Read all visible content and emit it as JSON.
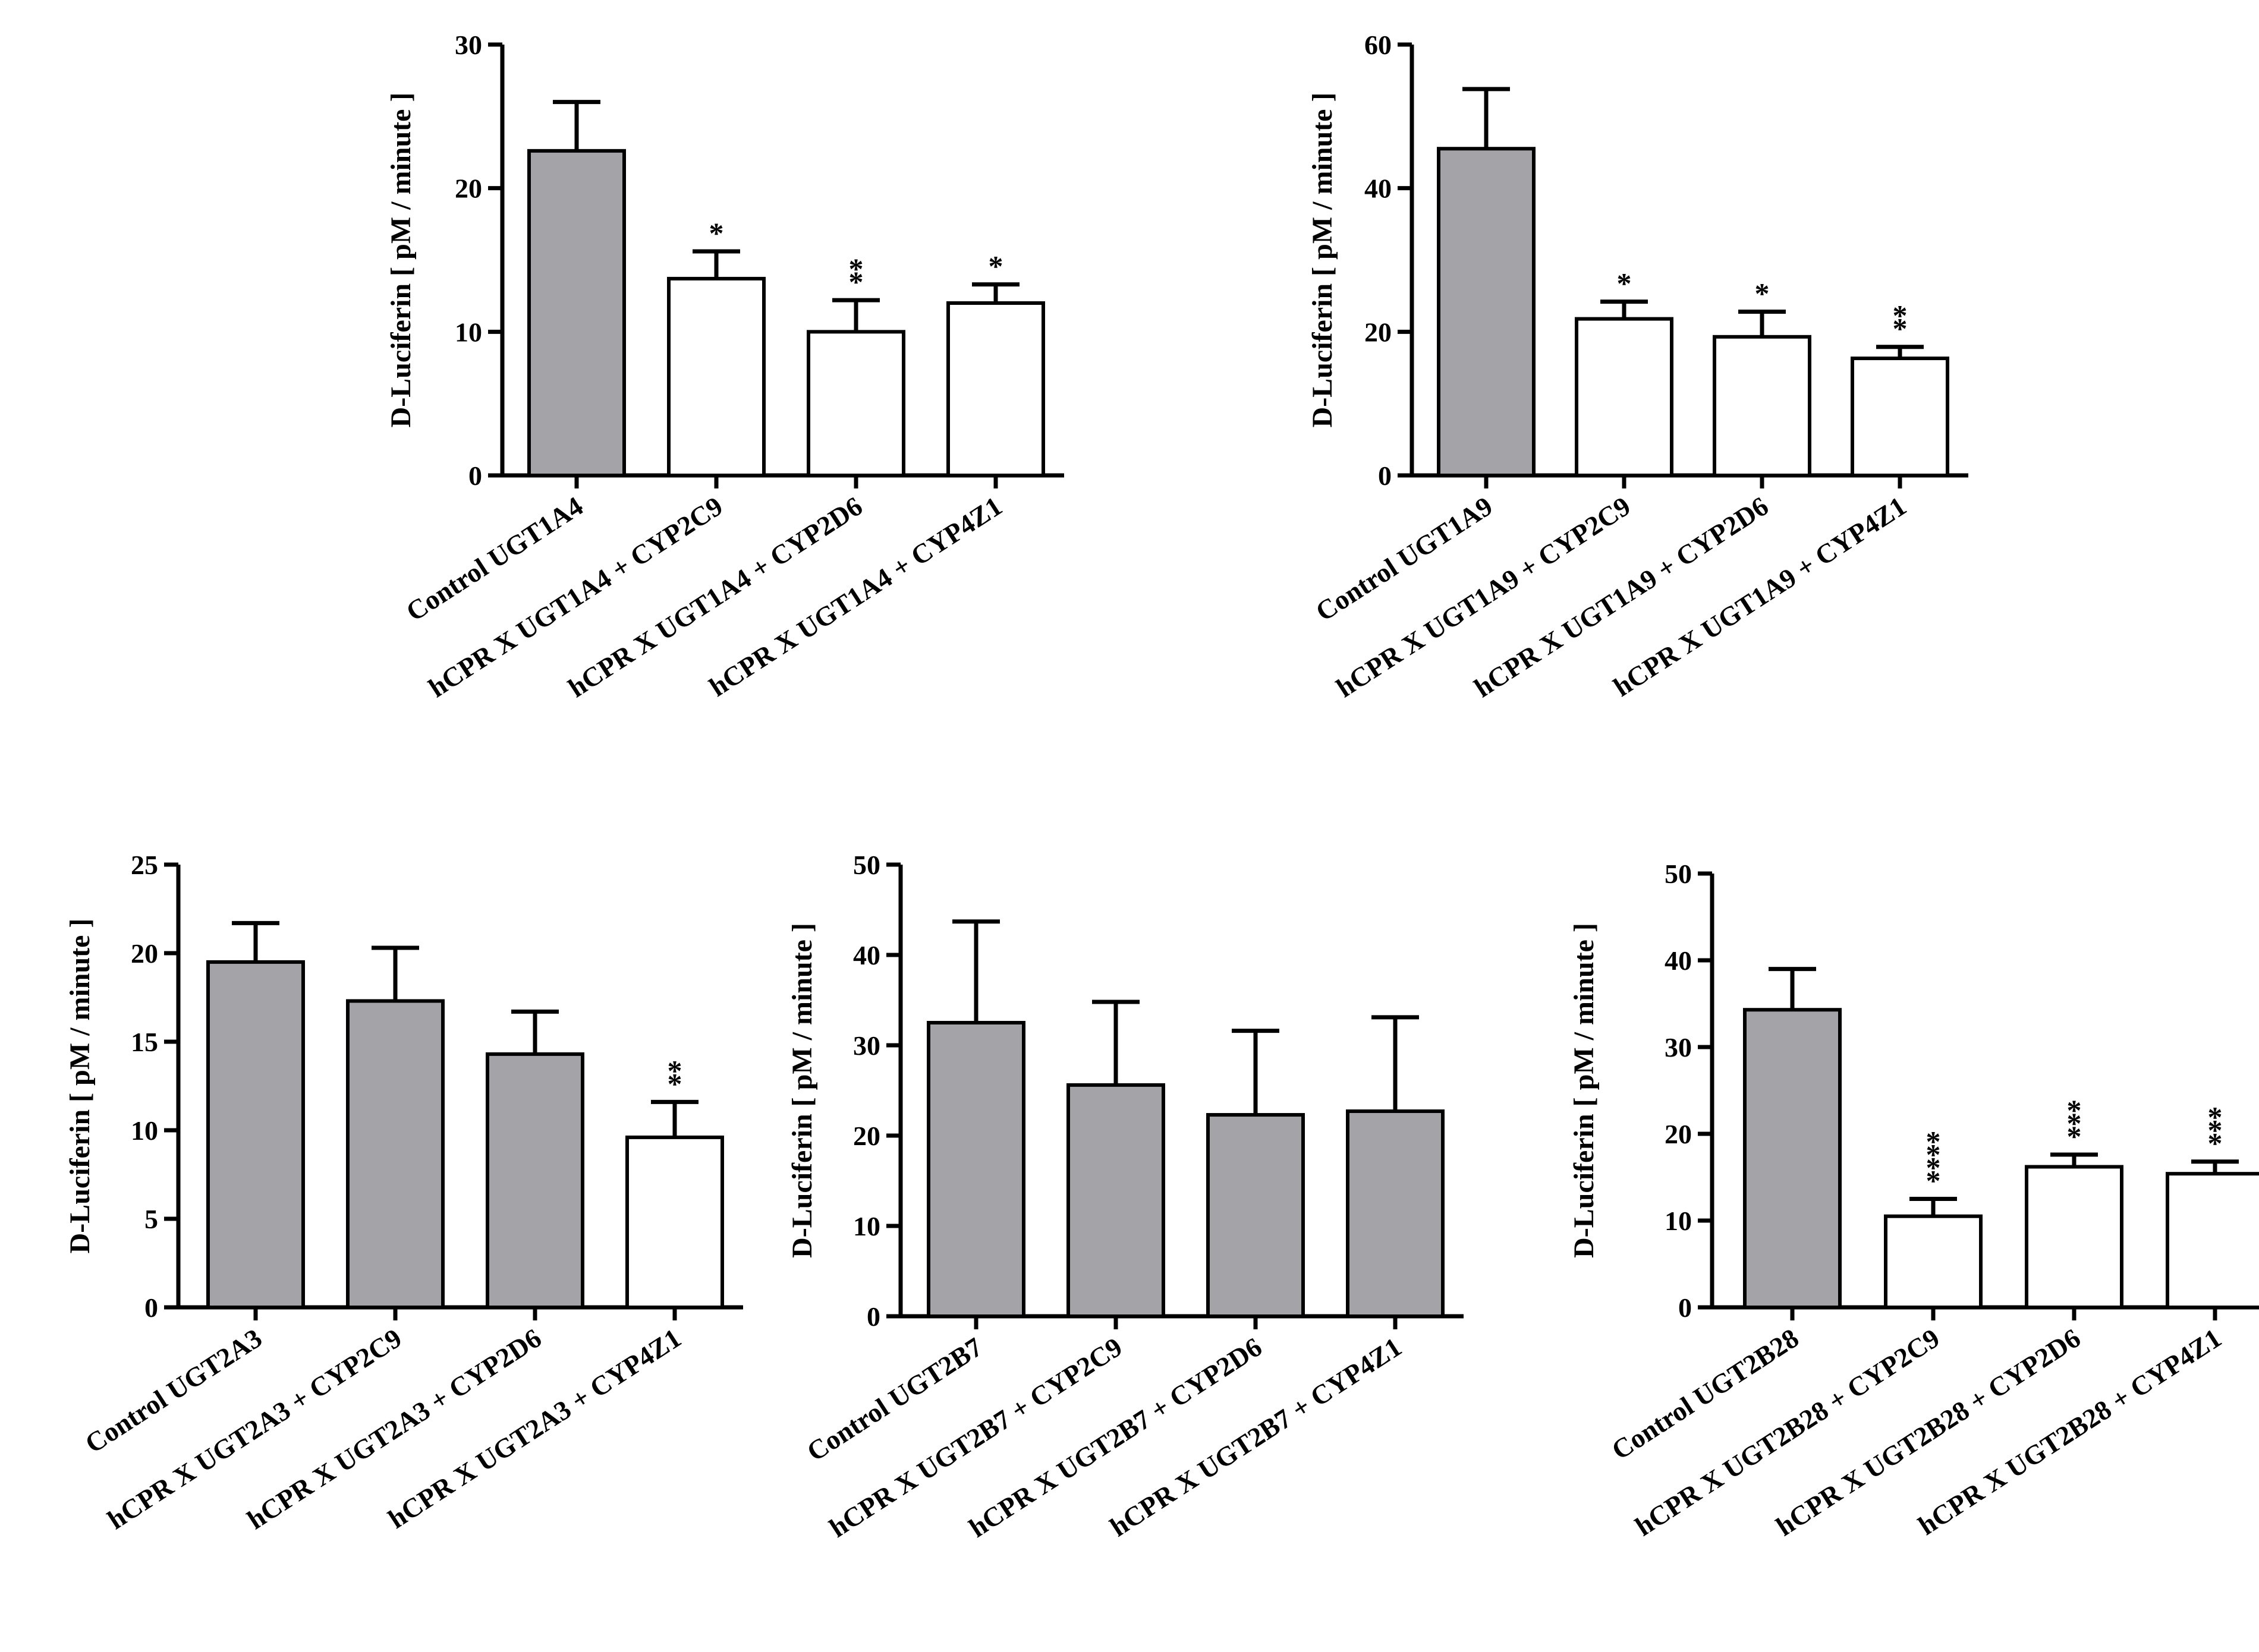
{
  "colors": {
    "gray_bar": "#a3a3a8",
    "white_bar": "#ffffff",
    "stroke": "#000000"
  },
  "chart_data": [
    {
      "type": "bar",
      "ylabel": "D-Luciferin [ pM / minute ]",
      "ylim": [
        0,
        30
      ],
      "yticks": [
        0,
        10,
        20,
        30
      ],
      "categories": [
        "Control UGT1A4",
        "hCPR X UGT1A4 + CYP2C9",
        "hCPR X UGT1A4 + CYP2D6",
        "hCPR X UGT1A4 + CYP4Z1"
      ],
      "values": [
        22.6,
        13.7,
        10.0,
        12.0
      ],
      "errors": [
        3.4,
        1.9,
        2.2,
        1.3
      ],
      "fills": [
        "gray",
        "white",
        "white",
        "white"
      ],
      "significance": [
        "",
        "*",
        "**",
        "*"
      ]
    },
    {
      "type": "bar",
      "ylabel": "D-Luciferin [ pM / minute ]",
      "ylim": [
        0,
        60
      ],
      "yticks": [
        0,
        20,
        40,
        60
      ],
      "categories": [
        "Control UGT1A9",
        "hCPR X UGT1A9 + CYP2C9",
        "hCPR X UGT1A9 + CYP2D6",
        "hCPR X UGT1A9 + CYP4Z1"
      ],
      "values": [
        45.5,
        21.8,
        19.3,
        16.3
      ],
      "errors": [
        8.3,
        2.4,
        3.5,
        1.6
      ],
      "fills": [
        "gray",
        "white",
        "white",
        "white"
      ],
      "significance": [
        "",
        "*",
        "*",
        "**"
      ]
    },
    {
      "type": "bar",
      "ylabel": "D-Luciferin [ pM / minute ]",
      "ylim": [
        0,
        25
      ],
      "yticks": [
        0,
        5,
        10,
        15,
        20,
        25
      ],
      "categories": [
        "Control UGT2A3",
        "hCPR X UGT2A3 + CYP2C9",
        "hCPR X UGT2A3 + CYP2D6",
        "hCPR X UGT2A3 + CYP4Z1"
      ],
      "values": [
        19.5,
        17.3,
        14.3,
        9.6
      ],
      "errors": [
        2.2,
        3.0,
        2.4,
        2.0
      ],
      "fills": [
        "gray",
        "gray",
        "gray",
        "white"
      ],
      "significance": [
        "",
        "",
        "",
        "**"
      ]
    },
    {
      "type": "bar",
      "ylabel": "D-Luciferin [ pM / minute ]",
      "ylim": [
        0,
        50
      ],
      "yticks": [
        0,
        10,
        20,
        30,
        40,
        50
      ],
      "categories": [
        "Control UGT2B7",
        "hCPR X UGT2B7 + CYP2C9",
        "hCPR X UGT2B7 + CYP2D6",
        "hCPR X UGT2B7 + CYP4Z1"
      ],
      "values": [
        32.5,
        25.6,
        22.3,
        22.7
      ],
      "errors": [
        11.2,
        9.2,
        9.3,
        10.4
      ],
      "fills": [
        "gray",
        "gray",
        "gray",
        "gray"
      ],
      "significance": [
        "",
        "",
        "",
        ""
      ]
    },
    {
      "type": "bar",
      "ylabel": "D-Luciferin [ pM / minute ]",
      "ylim": [
        0,
        50
      ],
      "yticks": [
        0,
        10,
        20,
        30,
        40,
        50
      ],
      "categories": [
        "Control UGT2B28",
        "hCPR X UGT2B28 + CYP2C9",
        "hCPR X UGT2B28 + CYP2D6",
        "hCPR X UGT2B28 + CYP4Z1"
      ],
      "values": [
        34.3,
        10.5,
        16.2,
        15.4
      ],
      "errors": [
        4.7,
        2.0,
        1.4,
        1.4
      ],
      "fills": [
        "gray",
        "white",
        "white",
        "white"
      ],
      "significance": [
        "",
        "****",
        "***",
        "***"
      ]
    }
  ]
}
